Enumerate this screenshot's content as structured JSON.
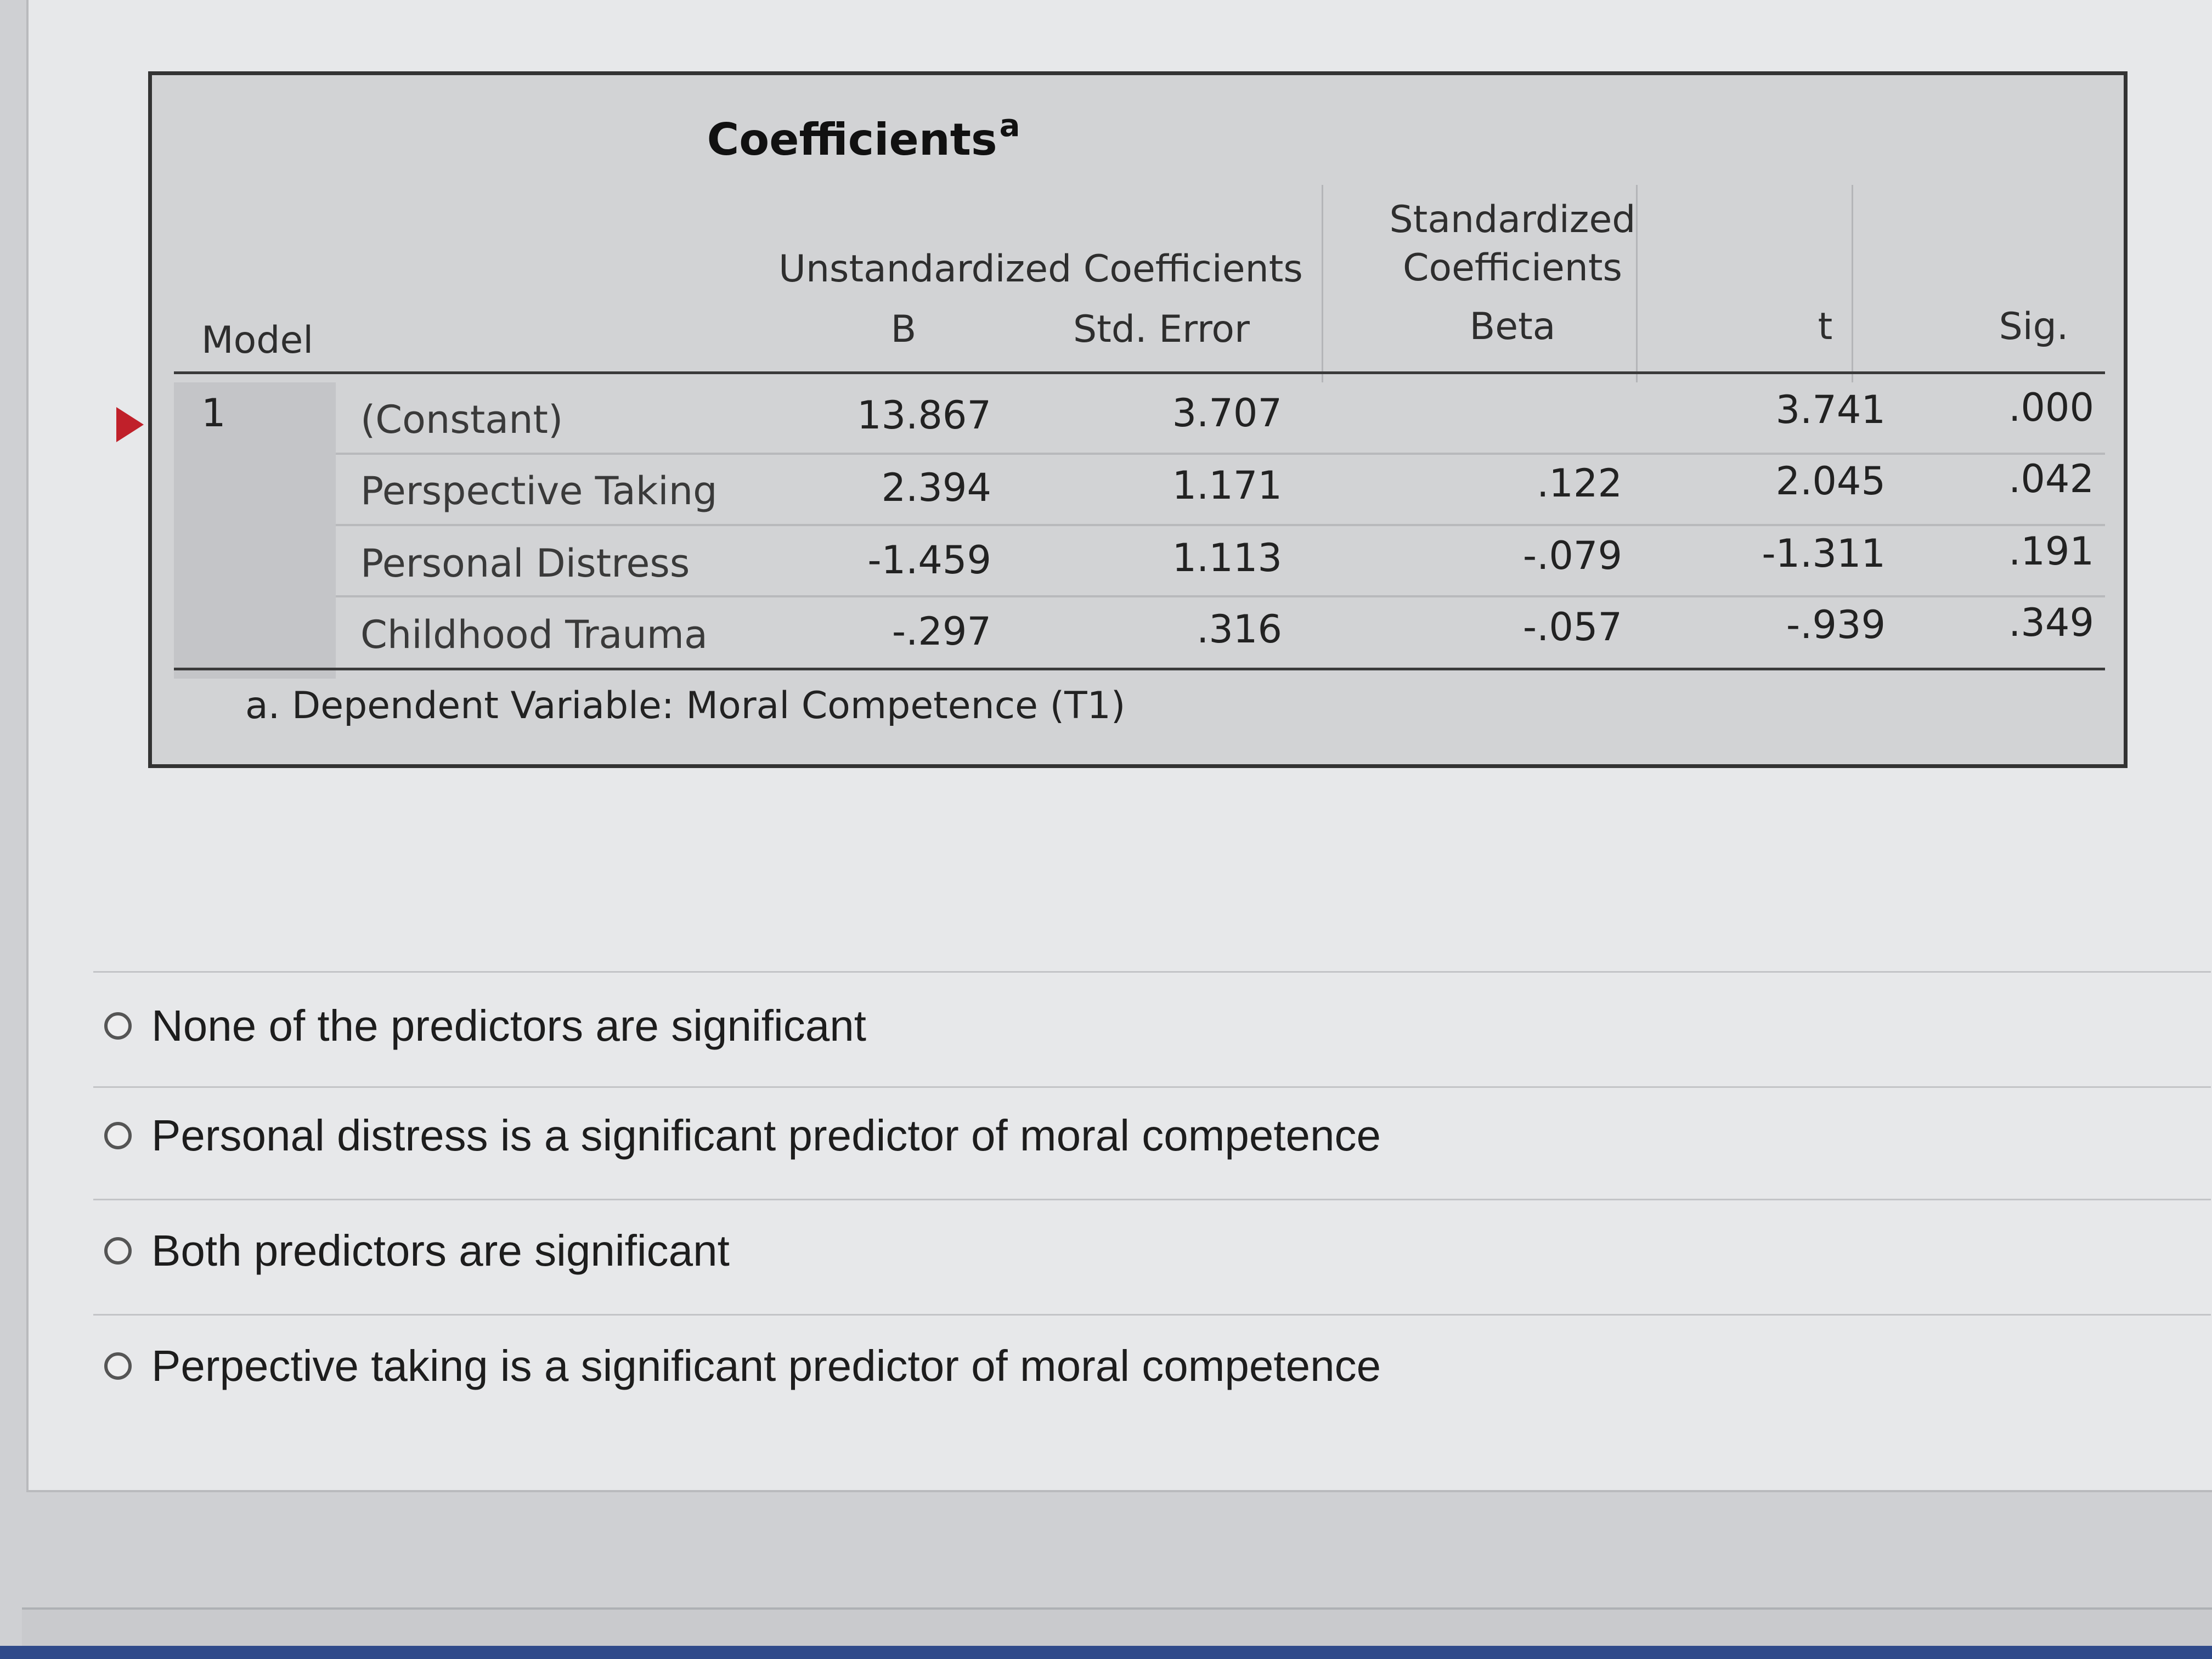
{
  "table": {
    "title": "Coefficients",
    "title_superscript": "a",
    "header": {
      "model": "Model",
      "unstandardized": "Unstandardized Coefficients",
      "b": "B",
      "std_error": "Std. Error",
      "standardized_line1": "Standardized",
      "standardized_line2": "Coefficients",
      "beta": "Beta",
      "t": "t",
      "sig": "Sig."
    },
    "model_number": "1",
    "rows": [
      {
        "label": "(Constant)",
        "b": "13.867",
        "se": "3.707",
        "beta": "",
        "t": "3.741",
        "sig": ".000"
      },
      {
        "label": "Perspective Taking",
        "b": "2.394",
        "se": "1.171",
        "beta": ".122",
        "t": "2.045",
        "sig": ".042"
      },
      {
        "label": "Personal Distress",
        "b": "-1.459",
        "se": "1.113",
        "beta": "-.079",
        "t": "-1.311",
        "sig": ".191"
      },
      {
        "label": "Childhood Trauma",
        "b": "-.297",
        "se": ".316",
        "beta": "-.057",
        "t": "-.939",
        "sig": ".349"
      }
    ],
    "footnote": "a. Dependent Variable: Moral Competence (T1)"
  },
  "options": [
    {
      "label": "None of the predictors are significant"
    },
    {
      "label": "Personal distress is a significant predictor of moral competence"
    },
    {
      "label": "Both predictors are significant"
    },
    {
      "label": "Perpective taking is a significant predictor of moral competence"
    }
  ],
  "colors": {
    "marker": "#c0202a",
    "frame_border": "#333333"
  }
}
